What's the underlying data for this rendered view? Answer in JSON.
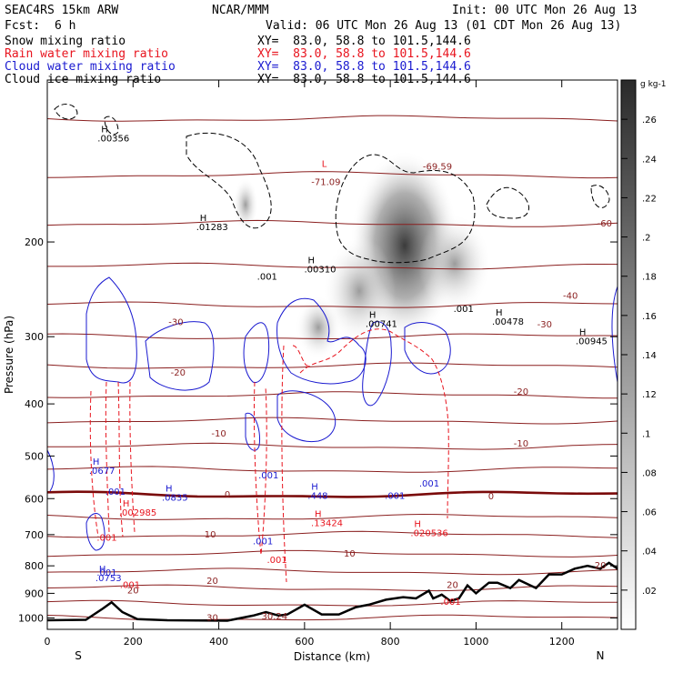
{
  "header": {
    "model": "SEAC4RS 15km ARW",
    "org": "NCAR/MMM",
    "init": "Init: 00 UTC Mon 26 Aug 13",
    "fcst_label": "Fcst:",
    "fcst_value": "6 h",
    "valid": "Valid: 06 UTC Mon 26 Aug 13 (01 CDT Mon 26 Aug 13)",
    "fields": [
      {
        "name": "Snow mixing ratio",
        "xy": "XY=  83.0, 58.8 to 101.5,144.6",
        "color": "#000000"
      },
      {
        "name": "Rain water mixing ratio",
        "xy": "XY=  83.0, 58.8 to 101.5,144.6",
        "color": "#e8141e"
      },
      {
        "name": "Cloud water mixing ratio",
        "xy": "XY=  83.0, 58.8 to 101.5,144.6",
        "color": "#1a1ad0"
      },
      {
        "name": "Cloud ice mixing ratio",
        "xy": "XY=  83.0, 58.8 to 101.5,144.6",
        "color": "#000000"
      }
    ]
  },
  "chart_data": {
    "type": "cross-section",
    "xlabel": "Distance (km)",
    "ylabel": "Pressure (hPa)",
    "xlim": [
      0,
      1330
    ],
    "ylim": [
      1050,
      100
    ],
    "y_scale": "log",
    "x_ticks": [
      0,
      200,
      400,
      600,
      800,
      1000,
      1200
    ],
    "y_ticks": [
      200,
      300,
      400,
      500,
      600,
      700,
      800,
      900,
      1000
    ],
    "x_end_labels": {
      "left": "S",
      "right": "N"
    },
    "colorbar": {
      "units": "g kg-1",
      "ticks": [
        ".02",
        ".04",
        ".06",
        ".08",
        ".1",
        ".12",
        ".14",
        ".16",
        ".18",
        ".2",
        ".22",
        ".24",
        ".26"
      ],
      "min": 0.0,
      "max": 0.28
    },
    "cloud_ice_max_labels": [
      {
        "x": 130,
        "p": 130,
        "text": ".00356"
      },
      {
        "x": 360,
        "p": 190,
        "text": ".01283"
      },
      {
        "x": 612,
        "p": 228,
        "text": ".00310"
      },
      {
        "x": 755,
        "p": 288,
        "text": ".00741"
      },
      {
        "x": 1050,
        "p": 285,
        "text": ".00478"
      },
      {
        "x": 1245,
        "p": 310,
        "text": ".00945"
      }
    ],
    "cloud_water_max_labels": [
      {
        "x": 110,
        "p": 540,
        "text": ".0677"
      },
      {
        "x": 280,
        "p": 605,
        "text": ".0835"
      },
      {
        "x": 620,
        "p": 600,
        "text": ".448"
      },
      {
        "x": 125,
        "p": 855,
        "text": ".0753"
      }
    ],
    "cloud_water_contour_labels": [
      {
        "x": 148,
        "p": 590,
        "text": ".001"
      },
      {
        "x": 505,
        "p": 550,
        "text": ".001"
      },
      {
        "x": 800,
        "p": 600,
        "text": ".001"
      },
      {
        "x": 880,
        "p": 570,
        "text": ".001"
      },
      {
        "x": 492,
        "p": 730,
        "text": ".001"
      },
      {
        "x": 128,
        "p": 835,
        "text": ".001"
      }
    ],
    "rain_max_labels": [
      {
        "x": 180,
        "p": 645,
        "text": ".002985"
      },
      {
        "x": 628,
        "p": 675,
        "text": ".13424"
      },
      {
        "x": 860,
        "p": 705,
        "text": ".020536"
      }
    ],
    "rain_contour_labels": [
      {
        "x": 128,
        "p": 718,
        "text": ".001"
      },
      {
        "x": 525,
        "p": 790,
        "text": ".001"
      },
      {
        "x": 182,
        "p": 880,
        "text": ".001"
      },
      {
        "x": 930,
        "p": 945,
        "text": ".001"
      }
    ],
    "snow_contour_labels": [
      {
        "x": 502,
        "p": 235,
        "text": ".001"
      },
      {
        "x": 960,
        "p": 270,
        "text": ".001"
      }
    ],
    "temperature_labels": [
      {
        "x": 650,
        "p": 155,
        "text": "-71.09"
      },
      {
        "x": 910,
        "p": 145,
        "text": "-69.59"
      },
      {
        "x": 1300,
        "p": 185,
        "text": "-60"
      },
      {
        "x": 1220,
        "p": 252,
        "text": "-40"
      },
      {
        "x": 1160,
        "p": 285,
        "text": "-30"
      },
      {
        "x": 300,
        "p": 282,
        "text": "-30"
      },
      {
        "x": 305,
        "p": 350,
        "text": "-20"
      },
      {
        "x": 1105,
        "p": 380,
        "text": "-20"
      },
      {
        "x": 400,
        "p": 455,
        "text": "-10"
      },
      {
        "x": 1105,
        "p": 475,
        "text": "-10"
      },
      {
        "x": 420,
        "p": 590,
        "text": "0"
      },
      {
        "x": 1035,
        "p": 595,
        "text": "0"
      },
      {
        "x": 380,
        "p": 700,
        "text": "10"
      },
      {
        "x": 705,
        "p": 760,
        "text": "10"
      },
      {
        "x": 385,
        "p": 855,
        "text": "20"
      },
      {
        "x": 945,
        "p": 870,
        "text": "20"
      },
      {
        "x": 200,
        "p": 890,
        "text": "20"
      },
      {
        "x": 385,
        "p": 1000,
        "text": "30"
      },
      {
        "x": 530,
        "p": 995,
        "text": "30.24"
      },
      {
        "x": 1290,
        "p": 800,
        "text": "20"
      }
    ],
    "max_marker": "H",
    "min_marker": "L",
    "terrain_km_hpa": [
      [
        0,
        1010
      ],
      [
        90,
        1008
      ],
      [
        130,
        960
      ],
      [
        150,
        935
      ],
      [
        175,
        975
      ],
      [
        210,
        1005
      ],
      [
        280,
        1010
      ],
      [
        420,
        1012
      ],
      [
        480,
        990
      ],
      [
        510,
        975
      ],
      [
        540,
        990
      ],
      [
        560,
        985
      ],
      [
        600,
        945
      ],
      [
        640,
        985
      ],
      [
        680,
        985
      ],
      [
        720,
        955
      ],
      [
        750,
        945
      ],
      [
        790,
        925
      ],
      [
        830,
        915
      ],
      [
        860,
        920
      ],
      [
        890,
        890
      ],
      [
        900,
        920
      ],
      [
        920,
        905
      ],
      [
        940,
        930
      ],
      [
        960,
        920
      ],
      [
        980,
        870
      ],
      [
        1000,
        900
      ],
      [
        1030,
        860
      ],
      [
        1050,
        860
      ],
      [
        1080,
        880
      ],
      [
        1100,
        850
      ],
      [
        1140,
        880
      ],
      [
        1170,
        830
      ],
      [
        1200,
        830
      ],
      [
        1230,
        810
      ],
      [
        1260,
        800
      ],
      [
        1290,
        810
      ],
      [
        1310,
        790
      ],
      [
        1330,
        810
      ]
    ]
  }
}
